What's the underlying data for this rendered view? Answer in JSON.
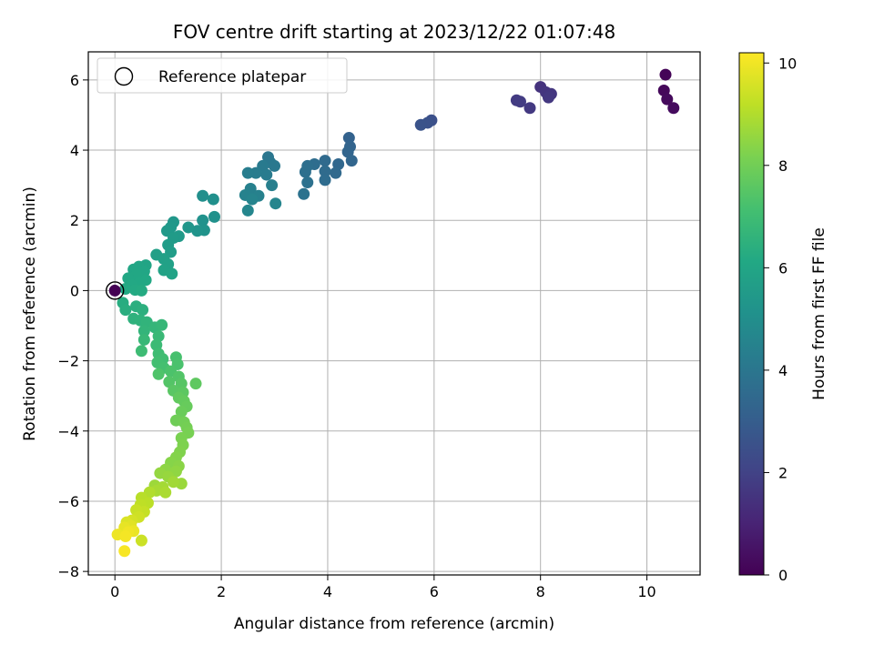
{
  "chart_data": {
    "type": "scatter",
    "title": "FOV centre drift starting at 2023/12/22 01:07:48",
    "xlabel": "Angular distance from reference (arcmin)",
    "ylabel": "Rotation from reference (arcmin)",
    "xlim": [
      -0.5,
      11.0
    ],
    "ylim": [
      -8.1,
      6.8
    ],
    "x_ticks": [
      0,
      2,
      4,
      6,
      8,
      10
    ],
    "y_ticks": [
      -8,
      -6,
      -4,
      -2,
      0,
      2,
      4,
      6
    ],
    "grid": true,
    "legend": {
      "position": "top-left",
      "entries": [
        {
          "label": "Reference platepar",
          "marker": "open-circle"
        }
      ]
    },
    "colorbar": {
      "label": "Hours from first FF file",
      "range": [
        0,
        10.2
      ],
      "ticks": [
        0,
        2,
        4,
        6,
        8,
        10
      ],
      "colormap": "viridis"
    },
    "reference_point": {
      "x": 0,
      "y": 0
    },
    "points": [
      {
        "x": 10.35,
        "y": 6.15,
        "t": 0.1
      },
      {
        "x": 10.32,
        "y": 5.7,
        "t": 0.2
      },
      {
        "x": 10.38,
        "y": 5.45,
        "t": 0.25
      },
      {
        "x": 10.5,
        "y": 5.2,
        "t": 0.3
      },
      {
        "x": 8.0,
        "y": 5.8,
        "t": 1.5
      },
      {
        "x": 8.1,
        "y": 5.65,
        "t": 1.55
      },
      {
        "x": 8.2,
        "y": 5.6,
        "t": 1.6
      },
      {
        "x": 8.15,
        "y": 5.5,
        "t": 1.65
      },
      {
        "x": 7.8,
        "y": 5.2,
        "t": 1.7
      },
      {
        "x": 7.55,
        "y": 5.42,
        "t": 1.75
      },
      {
        "x": 7.62,
        "y": 5.38,
        "t": 1.8
      },
      {
        "x": 5.95,
        "y": 4.85,
        "t": 2.5
      },
      {
        "x": 5.88,
        "y": 4.78,
        "t": 2.55
      },
      {
        "x": 5.75,
        "y": 4.72,
        "t": 2.6
      },
      {
        "x": 4.4,
        "y": 4.35,
        "t": 3.2
      },
      {
        "x": 4.42,
        "y": 4.1,
        "t": 3.25
      },
      {
        "x": 4.38,
        "y": 3.95,
        "t": 3.3
      },
      {
        "x": 4.45,
        "y": 3.7,
        "t": 3.35
      },
      {
        "x": 4.2,
        "y": 3.6,
        "t": 3.4
      },
      {
        "x": 4.15,
        "y": 3.35,
        "t": 3.45
      },
      {
        "x": 3.95,
        "y": 3.7,
        "t": 3.5
      },
      {
        "x": 3.95,
        "y": 3.4,
        "t": 3.55
      },
      {
        "x": 3.95,
        "y": 3.15,
        "t": 3.6
      },
      {
        "x": 3.75,
        "y": 3.6,
        "t": 3.65
      },
      {
        "x": 3.62,
        "y": 3.55,
        "t": 3.7
      },
      {
        "x": 3.58,
        "y": 3.38,
        "t": 3.75
      },
      {
        "x": 3.62,
        "y": 3.08,
        "t": 3.8
      },
      {
        "x": 3.55,
        "y": 2.75,
        "t": 3.85
      },
      {
        "x": 2.88,
        "y": 3.8,
        "t": 4.0
      },
      {
        "x": 2.92,
        "y": 3.65,
        "t": 4.05
      },
      {
        "x": 3.0,
        "y": 3.55,
        "t": 4.1
      },
      {
        "x": 2.78,
        "y": 3.55,
        "t": 4.15
      },
      {
        "x": 2.85,
        "y": 3.3,
        "t": 4.2
      },
      {
        "x": 2.65,
        "y": 3.35,
        "t": 4.25
      },
      {
        "x": 2.5,
        "y": 3.35,
        "t": 4.3
      },
      {
        "x": 2.95,
        "y": 3.0,
        "t": 4.35
      },
      {
        "x": 2.55,
        "y": 2.9,
        "t": 4.4
      },
      {
        "x": 2.7,
        "y": 2.7,
        "t": 4.45
      },
      {
        "x": 2.45,
        "y": 2.72,
        "t": 4.5
      },
      {
        "x": 2.58,
        "y": 2.6,
        "t": 4.55
      },
      {
        "x": 3.02,
        "y": 2.48,
        "t": 4.6
      },
      {
        "x": 2.5,
        "y": 2.28,
        "t": 4.65
      },
      {
        "x": 1.65,
        "y": 2.7,
        "t": 5.0
      },
      {
        "x": 1.85,
        "y": 2.6,
        "t": 5.05
      },
      {
        "x": 1.87,
        "y": 2.1,
        "t": 5.1
      },
      {
        "x": 1.65,
        "y": 2.0,
        "t": 5.15
      },
      {
        "x": 1.68,
        "y": 1.72,
        "t": 5.2
      },
      {
        "x": 1.55,
        "y": 1.7,
        "t": 5.25
      },
      {
        "x": 1.38,
        "y": 1.8,
        "t": 5.3
      },
      {
        "x": 1.1,
        "y": 1.95,
        "t": 5.35
      },
      {
        "x": 1.05,
        "y": 1.8,
        "t": 5.4
      },
      {
        "x": 0.98,
        "y": 1.7,
        "t": 5.45
      },
      {
        "x": 1.2,
        "y": 1.55,
        "t": 5.5
      },
      {
        "x": 1.1,
        "y": 1.5,
        "t": 5.55
      },
      {
        "x": 1.0,
        "y": 1.3,
        "t": 5.6
      },
      {
        "x": 1.05,
        "y": 1.1,
        "t": 5.65
      },
      {
        "x": 0.78,
        "y": 1.02,
        "t": 5.7
      },
      {
        "x": 0.92,
        "y": 0.9,
        "t": 5.75
      },
      {
        "x": 1.0,
        "y": 0.75,
        "t": 5.8
      },
      {
        "x": 0.92,
        "y": 0.58,
        "t": 5.85
      },
      {
        "x": 1.07,
        "y": 0.48,
        "t": 5.9
      },
      {
        "x": 0.58,
        "y": 0.72,
        "t": 5.95
      },
      {
        "x": 0.45,
        "y": 0.68,
        "t": 6.0
      },
      {
        "x": 0.35,
        "y": 0.6,
        "t": 6.02
      },
      {
        "x": 0.55,
        "y": 0.55,
        "t": 6.04
      },
      {
        "x": 0.4,
        "y": 0.45,
        "t": 6.06
      },
      {
        "x": 0.25,
        "y": 0.35,
        "t": 6.08
      },
      {
        "x": 0.58,
        "y": 0.3,
        "t": 6.1
      },
      {
        "x": 0.45,
        "y": 0.2,
        "t": 6.12
      },
      {
        "x": 0.32,
        "y": 0.15,
        "t": 6.14
      },
      {
        "x": 0.2,
        "y": 0.05,
        "t": 6.16
      },
      {
        "x": 0.38,
        "y": 0.02,
        "t": 6.18
      },
      {
        "x": 0.5,
        "y": 0.0,
        "t": 6.2
      },
      {
        "x": 0.15,
        "y": -0.35,
        "t": 6.3
      },
      {
        "x": 0.2,
        "y": -0.55,
        "t": 6.35
      },
      {
        "x": 0.4,
        "y": -0.45,
        "t": 6.4
      },
      {
        "x": 0.52,
        "y": -0.55,
        "t": 6.45
      },
      {
        "x": 0.35,
        "y": -0.8,
        "t": 6.5
      },
      {
        "x": 0.48,
        "y": -0.85,
        "t": 6.55
      },
      {
        "x": 0.6,
        "y": -0.9,
        "t": 6.6
      },
      {
        "x": 0.55,
        "y": -1.15,
        "t": 6.65
      },
      {
        "x": 0.75,
        "y": -1.05,
        "t": 6.7
      },
      {
        "x": 0.88,
        "y": -0.98,
        "t": 6.75
      },
      {
        "x": 0.55,
        "y": -1.4,
        "t": 6.8
      },
      {
        "x": 0.82,
        "y": -1.3,
        "t": 6.85
      },
      {
        "x": 0.78,
        "y": -1.55,
        "t": 6.9
      },
      {
        "x": 0.5,
        "y": -1.72,
        "t": 6.95
      },
      {
        "x": 0.82,
        "y": -1.8,
        "t": 7.0
      },
      {
        "x": 0.9,
        "y": -1.95,
        "t": 7.05
      },
      {
        "x": 0.8,
        "y": -2.05,
        "t": 7.1
      },
      {
        "x": 0.92,
        "y": -2.2,
        "t": 7.15
      },
      {
        "x": 1.15,
        "y": -1.9,
        "t": 7.2
      },
      {
        "x": 1.18,
        "y": -2.1,
        "t": 7.25
      },
      {
        "x": 1.05,
        "y": -2.3,
        "t": 7.3
      },
      {
        "x": 0.82,
        "y": -2.38,
        "t": 7.35
      },
      {
        "x": 1.2,
        "y": -2.45,
        "t": 7.4
      },
      {
        "x": 1.02,
        "y": -2.6,
        "t": 7.45
      },
      {
        "x": 1.25,
        "y": -2.65,
        "t": 7.5
      },
      {
        "x": 1.1,
        "y": -2.85,
        "t": 7.55
      },
      {
        "x": 1.28,
        "y": -2.9,
        "t": 7.6
      },
      {
        "x": 1.52,
        "y": -2.65,
        "t": 7.65
      },
      {
        "x": 1.2,
        "y": -3.05,
        "t": 7.7
      },
      {
        "x": 1.3,
        "y": -3.15,
        "t": 7.75
      },
      {
        "x": 1.35,
        "y": -3.3,
        "t": 7.8
      },
      {
        "x": 1.25,
        "y": -3.45,
        "t": 7.85
      },
      {
        "x": 1.15,
        "y": -3.7,
        "t": 7.95
      },
      {
        "x": 1.3,
        "y": -3.75,
        "t": 8.0
      },
      {
        "x": 1.35,
        "y": -3.9,
        "t": 8.05
      },
      {
        "x": 1.38,
        "y": -4.05,
        "t": 8.1
      },
      {
        "x": 1.25,
        "y": -4.2,
        "t": 8.15
      },
      {
        "x": 1.28,
        "y": -4.4,
        "t": 8.2
      },
      {
        "x": 1.22,
        "y": -4.6,
        "t": 8.25
      },
      {
        "x": 1.15,
        "y": -4.75,
        "t": 8.3
      },
      {
        "x": 1.05,
        "y": -4.9,
        "t": 8.35
      },
      {
        "x": 1.2,
        "y": -5.0,
        "t": 8.4
      },
      {
        "x": 0.95,
        "y": -5.1,
        "t": 8.45
      },
      {
        "x": 1.15,
        "y": -5.15,
        "t": 8.5
      },
      {
        "x": 0.85,
        "y": -5.2,
        "t": 8.55
      },
      {
        "x": 1.0,
        "y": -5.3,
        "t": 8.6
      },
      {
        "x": 1.25,
        "y": -5.5,
        "t": 8.65
      },
      {
        "x": 0.75,
        "y": -5.55,
        "t": 8.7
      },
      {
        "x": 1.1,
        "y": -5.45,
        "t": 8.75
      },
      {
        "x": 0.9,
        "y": -5.6,
        "t": 8.8
      },
      {
        "x": 0.78,
        "y": -5.7,
        "t": 8.85
      },
      {
        "x": 0.95,
        "y": -5.75,
        "t": 8.9
      },
      {
        "x": 0.65,
        "y": -5.75,
        "t": 9.0
      },
      {
        "x": 0.5,
        "y": -5.9,
        "t": 9.1
      },
      {
        "x": 0.62,
        "y": -6.05,
        "t": 9.15
      },
      {
        "x": 0.48,
        "y": -6.1,
        "t": 9.2
      },
      {
        "x": 0.55,
        "y": -6.3,
        "t": 9.3
      },
      {
        "x": 0.4,
        "y": -6.25,
        "t": 9.35
      },
      {
        "x": 0.45,
        "y": -6.45,
        "t": 9.45
      },
      {
        "x": 0.32,
        "y": -6.55,
        "t": 9.55
      },
      {
        "x": 0.22,
        "y": -6.6,
        "t": 9.65
      },
      {
        "x": 0.3,
        "y": -6.7,
        "t": 9.75
      },
      {
        "x": 0.18,
        "y": -6.75,
        "t": 9.85
      },
      {
        "x": 0.35,
        "y": -6.85,
        "t": 9.9
      },
      {
        "x": 0.05,
        "y": -6.95,
        "t": 9.95
      },
      {
        "x": 0.25,
        "y": -6.88,
        "t": 10.0
      },
      {
        "x": 0.2,
        "y": -7.0,
        "t": 10.05
      },
      {
        "x": 0.5,
        "y": -7.12,
        "t": 9.4
      },
      {
        "x": 0.18,
        "y": -7.42,
        "t": 10.1
      },
      {
        "x": 0.0,
        "y": 0.0,
        "t": 0.0
      }
    ]
  }
}
